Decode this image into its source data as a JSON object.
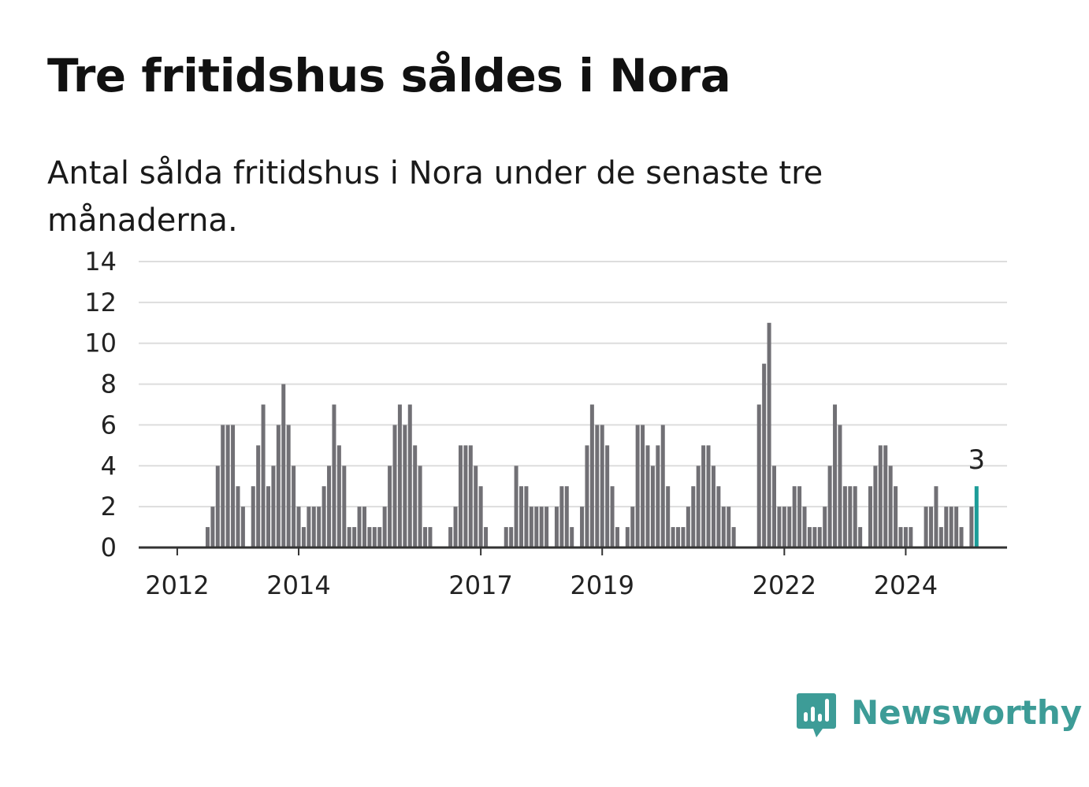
{
  "title": "Tre fritidshus såldes i Nora",
  "subtitle": "Antal sålda fritidshus i Nora under de senaste tre månaderna.",
  "brand": {
    "name": "Newsworthy",
    "icon": "chart-speech-bubble-icon",
    "color": "#3d9c97"
  },
  "chart_data": {
    "type": "bar",
    "title": "Tre fritidshus såldes i Nora",
    "subtitle": "Antal sålda fritidshus i Nora under de senaste tre månaderna.",
    "xlabel": "",
    "ylabel": "",
    "ylim": [
      0,
      14
    ],
    "yticks": [
      0,
      2,
      4,
      6,
      8,
      10,
      12,
      14
    ],
    "xticks": [
      "2012",
      "2014",
      "2017",
      "2019",
      "2022",
      "2024"
    ],
    "x_start": "2011-06",
    "grid": true,
    "bar_color": "#717075",
    "highlight_color": "#1c9c98",
    "highlight_label": "3",
    "values": [
      0,
      0,
      0,
      0,
      0,
      0,
      0,
      0,
      0,
      0,
      0,
      0,
      0,
      1,
      2,
      4,
      6,
      6,
      6,
      3,
      2,
      0,
      3,
      5,
      7,
      3,
      4,
      6,
      8,
      6,
      4,
      2,
      1,
      2,
      2,
      2,
      3,
      4,
      7,
      5,
      4,
      1,
      1,
      2,
      2,
      1,
      1,
      1,
      2,
      4,
      6,
      7,
      6,
      7,
      5,
      4,
      1,
      1,
      0,
      0,
      0,
      1,
      2,
      5,
      5,
      5,
      4,
      3,
      1,
      0,
      0,
      0,
      1,
      1,
      4,
      3,
      3,
      2,
      2,
      2,
      2,
      0,
      2,
      3,
      3,
      1,
      0,
      2,
      5,
      7,
      6,
      6,
      5,
      3,
      1,
      0,
      1,
      2,
      6,
      6,
      5,
      4,
      5,
      6,
      3,
      1,
      1,
      1,
      2,
      3,
      4,
      5,
      5,
      4,
      3,
      2,
      2,
      1,
      0,
      0,
      0,
      0,
      7,
      9,
      11,
      4,
      2,
      2,
      2,
      3,
      3,
      2,
      1,
      1,
      1,
      2,
      4,
      7,
      6,
      3,
      3,
      3,
      1,
      0,
      3,
      4,
      5,
      5,
      4,
      3,
      1,
      1,
      1,
      0,
      0,
      2,
      2,
      3,
      1,
      2,
      2,
      2,
      1,
      0,
      2,
      3
    ]
  }
}
